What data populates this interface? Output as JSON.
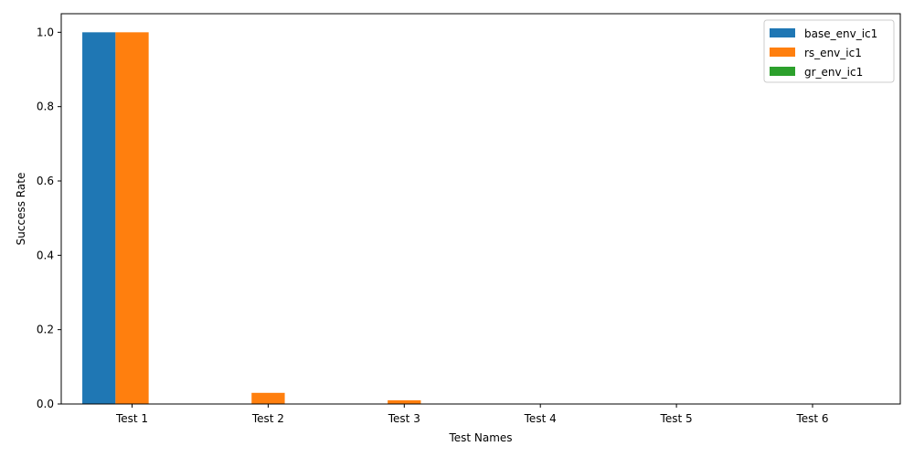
{
  "chart_data": {
    "type": "bar",
    "title": "",
    "xlabel": "Test Names",
    "ylabel": "Success Rate",
    "categories": [
      "Test 1",
      "Test 2",
      "Test 3",
      "Test 4",
      "Test 5",
      "Test 6"
    ],
    "series": [
      {
        "name": "base_env_ic1",
        "color": "#1f77b4",
        "values": [
          1.0,
          0,
          0,
          0,
          0,
          0
        ]
      },
      {
        "name": "rs_env_ic1",
        "color": "#ff7f0e",
        "values": [
          1.0,
          0.03,
          0.01,
          0,
          0,
          0
        ]
      },
      {
        "name": "gr_env_ic1",
        "color": "#2ca02c",
        "values": [
          0,
          0,
          0,
          0,
          0,
          0
        ]
      }
    ],
    "ylim": [
      0,
      1.05
    ],
    "yticks": [
      "0.0",
      "0.2",
      "0.4",
      "0.6",
      "0.8",
      "1.0"
    ],
    "grid": false,
    "legend_position": "top-right"
  }
}
